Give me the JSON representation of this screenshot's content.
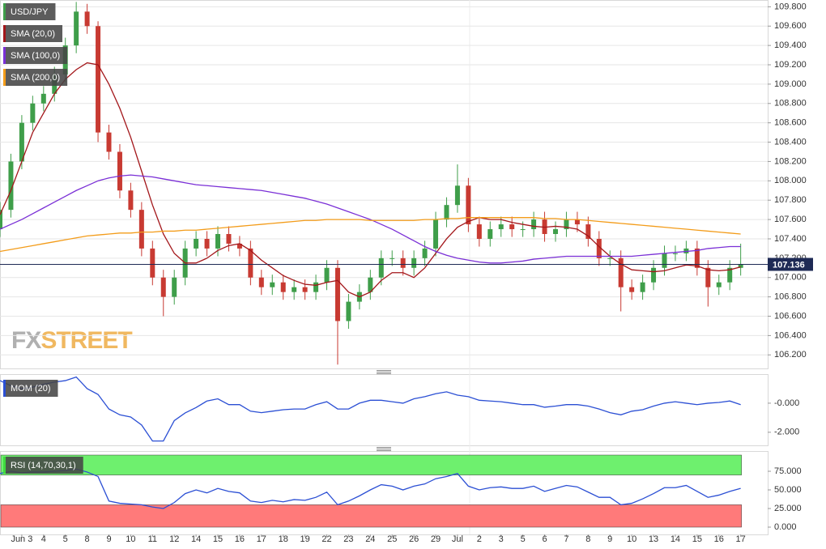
{
  "chart_data": [
    {
      "type": "candlestick",
      "symbol": "USD/JPY",
      "x": [
        -1,
        -0.5,
        0,
        0.5,
        1,
        1.5,
        2,
        2.5,
        3,
        3.5,
        4,
        4.5,
        5,
        5.5,
        6,
        6.5,
        7,
        7.5,
        8,
        8.5,
        9,
        9.5,
        10,
        10.5,
        11,
        11.5,
        12,
        12.5,
        13,
        13.5,
        14,
        14.5,
        15,
        15.5,
        16,
        16.5,
        17,
        17.5,
        18,
        18.5,
        19,
        19.5,
        20,
        20.5,
        21,
        21.5,
        22,
        22.5,
        23,
        23.5,
        24,
        24.5,
        25,
        25.5,
        26,
        26.5,
        27,
        27.5,
        28,
        28.5,
        29,
        29.5,
        30,
        30.5,
        31,
        31.5,
        32,
        32.5,
        33
      ],
      "open": [
        107.5,
        107.7,
        108.2,
        108.6,
        108.8,
        108.9,
        109.1,
        109.4,
        109.75,
        109.6,
        108.5,
        108.3,
        107.9,
        107.7,
        107.3,
        107.0,
        106.8,
        107.0,
        107.3,
        107.4,
        107.3,
        107.45,
        107.35,
        107.3,
        107.0,
        106.9,
        106.95,
        106.85,
        106.9,
        106.85,
        106.95,
        107.1,
        106.55,
        106.75,
        106.85,
        107.0,
        107.2,
        107.2,
        107.1,
        107.2,
        107.3,
        107.6,
        107.75,
        107.95,
        107.55,
        107.4,
        107.5,
        107.55,
        107.5,
        107.5,
        107.6,
        107.45,
        107.5,
        107.6,
        107.55,
        107.4,
        107.2,
        107.2,
        106.9,
        106.85,
        106.95,
        107.1,
        107.25,
        107.25,
        107.3,
        107.1,
        106.9,
        106.95,
        107.1
      ],
      "high": [
        107.78,
        108.28,
        108.68,
        108.88,
        108.98,
        109.18,
        109.48,
        109.85,
        109.83,
        109.65,
        108.58,
        108.38,
        107.98,
        107.78,
        107.38,
        107.08,
        107.08,
        107.38,
        107.48,
        107.48,
        107.53,
        107.53,
        107.43,
        107.38,
        107.08,
        107.03,
        107.03,
        106.98,
        106.98,
        107.03,
        107.18,
        107.18,
        106.83,
        106.93,
        107.08,
        107.28,
        107.28,
        107.28,
        107.28,
        107.38,
        107.68,
        107.83,
        108.17,
        108.03,
        107.63,
        107.58,
        107.63,
        107.63,
        107.58,
        107.68,
        107.68,
        107.58,
        107.68,
        107.68,
        107.63,
        107.48,
        107.28,
        107.28,
        106.98,
        107.03,
        107.18,
        107.33,
        107.33,
        107.38,
        107.38,
        107.18,
        107.03,
        107.18,
        107.35
      ],
      "low": [
        107.42,
        107.62,
        108.12,
        108.52,
        108.72,
        108.82,
        109.02,
        109.32,
        109.52,
        108.4,
        108.22,
        107.82,
        107.62,
        107.22,
        106.92,
        106.6,
        106.72,
        106.92,
        107.22,
        107.22,
        107.22,
        107.27,
        107.22,
        106.92,
        106.82,
        106.82,
        106.77,
        106.77,
        106.77,
        106.77,
        106.87,
        106.1,
        106.47,
        106.67,
        106.77,
        106.92,
        107.12,
        107.02,
        107.02,
        107.12,
        107.22,
        107.52,
        107.67,
        107.47,
        107.32,
        107.32,
        107.42,
        107.42,
        107.42,
        107.42,
        107.37,
        107.37,
        107.42,
        107.47,
        107.32,
        107.12,
        107.12,
        106.65,
        106.77,
        106.77,
        106.87,
        107.02,
        107.17,
        107.17,
        107.02,
        106.7,
        106.82,
        106.87,
        107.02
      ],
      "close": [
        107.7,
        108.2,
        108.6,
        108.8,
        108.9,
        109.1,
        109.4,
        109.75,
        109.6,
        108.5,
        108.3,
        107.9,
        107.7,
        107.3,
        107.0,
        106.8,
        107.0,
        107.3,
        107.4,
        107.3,
        107.45,
        107.35,
        107.3,
        107.0,
        106.9,
        106.95,
        106.85,
        106.9,
        106.85,
        106.95,
        107.1,
        106.55,
        106.75,
        106.85,
        107.0,
        107.2,
        107.2,
        107.1,
        107.2,
        107.3,
        107.6,
        107.75,
        107.95,
        107.55,
        107.4,
        107.5,
        107.55,
        107.5,
        107.5,
        107.6,
        107.45,
        107.5,
        107.6,
        107.55,
        107.4,
        107.2,
        107.2,
        106.9,
        106.85,
        106.95,
        107.1,
        107.25,
        107.25,
        107.3,
        107.1,
        106.9,
        106.95,
        107.1,
        107.14
      ],
      "up_color": "#3f9e4a",
      "down_color": "#c83a32",
      "symbol_color": "#3f9e4a",
      "series": [
        {
          "name": "SMA (20,0)",
          "color": "#a3161a",
          "values": [
            107.65,
            107.9,
            108.2,
            108.5,
            108.7,
            108.9,
            109.05,
            109.15,
            109.22,
            109.2,
            109.0,
            108.75,
            108.45,
            108.1,
            107.75,
            107.45,
            107.25,
            107.15,
            107.15,
            107.2,
            107.28,
            107.33,
            107.35,
            107.28,
            107.18,
            107.1,
            107.02,
            106.97,
            106.93,
            106.92,
            106.95,
            106.97,
            106.85,
            106.8,
            106.85,
            106.97,
            107.05,
            107.05,
            107.0,
            107.1,
            107.25,
            107.4,
            107.52,
            107.58,
            107.62,
            107.6,
            107.6,
            107.57,
            107.55,
            107.53,
            107.52,
            107.53,
            107.52,
            107.5,
            107.43,
            107.32,
            107.22,
            107.14,
            107.08,
            107.07,
            107.06,
            107.07,
            107.1,
            107.13,
            107.12,
            107.08,
            107.07,
            107.08,
            107.11
          ]
        },
        {
          "name": "SMA (100,0)",
          "color": "#7a2fd6",
          "values": [
            107.5,
            107.55,
            107.6,
            107.66,
            107.72,
            107.78,
            107.84,
            107.9,
            107.95,
            108.0,
            108.03,
            108.05,
            108.06,
            108.05,
            108.04,
            108.02,
            108.0,
            107.98,
            107.96,
            107.95,
            107.94,
            107.93,
            107.92,
            107.91,
            107.9,
            107.88,
            107.86,
            107.84,
            107.82,
            107.79,
            107.76,
            107.72,
            107.68,
            107.64,
            107.6,
            107.55,
            107.5,
            107.44,
            107.38,
            107.32,
            107.27,
            107.23,
            107.2,
            107.18,
            107.16,
            107.15,
            107.15,
            107.16,
            107.17,
            107.19,
            107.2,
            107.21,
            107.22,
            107.22,
            107.22,
            107.22,
            107.22,
            107.22,
            107.22,
            107.23,
            107.24,
            107.25,
            107.26,
            107.27,
            107.28,
            107.3,
            107.31,
            107.32,
            107.32
          ]
        },
        {
          "name": "SMA (200,0)",
          "color": "#f39c1a",
          "values": [
            107.27,
            107.29,
            107.31,
            107.33,
            107.35,
            107.37,
            107.39,
            107.41,
            107.43,
            107.44,
            107.45,
            107.46,
            107.46,
            107.47,
            107.47,
            107.48,
            107.48,
            107.49,
            107.49,
            107.5,
            107.51,
            107.52,
            107.53,
            107.54,
            107.55,
            107.56,
            107.57,
            107.58,
            107.59,
            107.59,
            107.6,
            107.6,
            107.6,
            107.6,
            107.59,
            107.59,
            107.59,
            107.59,
            107.59,
            107.6,
            107.6,
            107.61,
            107.61,
            107.62,
            107.62,
            107.62,
            107.62,
            107.62,
            107.62,
            107.62,
            107.61,
            107.61,
            107.6,
            107.6,
            107.59,
            107.58,
            107.57,
            107.56,
            107.55,
            107.54,
            107.53,
            107.52,
            107.51,
            107.5,
            107.49,
            107.48,
            107.47,
            107.46,
            107.45
          ]
        }
      ],
      "last_price": 107.136,
      "last_price_color": "#1e2a55",
      "xlim": [
        -1.0,
        34.24
      ],
      "ylim": [
        106.06,
        109.87
      ],
      "grid": true,
      "yticks": [
        {
          "value": 106.2,
          "label": "106.200"
        },
        {
          "value": 106.4,
          "label": "106.400"
        },
        {
          "value": 106.6,
          "label": "106.600"
        },
        {
          "value": 106.8,
          "label": "106.800"
        },
        {
          "value": 107.0,
          "label": "107.000"
        },
        {
          "value": 107.2,
          "label": "107.200"
        },
        {
          "value": 107.4,
          "label": "107.400"
        },
        {
          "value": 107.6,
          "label": "107.600"
        },
        {
          "value": 107.8,
          "label": "107.800"
        },
        {
          "value": 108.0,
          "label": "108.000"
        },
        {
          "value": 108.2,
          "label": "108.200"
        },
        {
          "value": 108.4,
          "label": "108.400"
        },
        {
          "value": 108.6,
          "label": "108.600"
        },
        {
          "value": 108.8,
          "label": "108.800"
        },
        {
          "value": 109.0,
          "label": "109.000"
        },
        {
          "value": 109.2,
          "label": "109.200"
        },
        {
          "value": 109.4,
          "label": "109.400"
        },
        {
          "value": 109.6,
          "label": "109.600"
        },
        {
          "value": 109.8,
          "label": "109.800"
        }
      ],
      "watermark": {
        "fx": "FX",
        "street": "STREET"
      }
    },
    {
      "type": "line",
      "x": [
        -1,
        -0.5,
        0,
        0.5,
        1,
        1.5,
        2,
        2.5,
        3,
        3.5,
        4,
        4.5,
        5,
        5.5,
        6,
        6.5,
        7,
        7.5,
        8,
        8.5,
        9,
        9.5,
        10,
        10.5,
        11,
        11.5,
        12,
        12.5,
        13,
        13.5,
        14,
        14.5,
        15,
        15.5,
        16,
        16.5,
        17,
        17.5,
        18,
        18.5,
        19,
        19.5,
        20,
        20.5,
        21,
        21.5,
        22,
        22.5,
        23,
        23.5,
        24,
        24.5,
        25,
        25.5,
        26,
        26.5,
        27,
        27.5,
        28,
        28.5,
        29,
        29.5,
        30,
        30.5,
        31,
        31.5,
        32,
        32.5,
        33
      ],
      "series": [
        {
          "name": "MOM (20)",
          "color": "#2b4fd4",
          "values": [
            1.55,
            1.2,
            1.0,
            1.1,
            1.3,
            1.45,
            1.55,
            1.8,
            1.0,
            0.6,
            -0.4,
            -0.8,
            -0.95,
            -1.5,
            -2.6,
            -2.6,
            -1.2,
            -0.67,
            -0.3,
            0.15,
            0.3,
            -0.1,
            -0.1,
            -0.55,
            -0.65,
            -0.55,
            -0.45,
            -0.4,
            -0.4,
            -0.1,
            0.1,
            -0.4,
            -0.4,
            0,
            0.2,
            0.2,
            0.1,
            0,
            0.3,
            0.45,
            0.65,
            0.78,
            0.55,
            0.45,
            0.2,
            0.15,
            0.1,
            0,
            -0.1,
            -0.1,
            -0.28,
            -0.2,
            -0.1,
            -0.1,
            -0.2,
            -0.4,
            -0.65,
            -0.8,
            -0.55,
            -0.45,
            -0.2,
            0,
            0.1,
            0,
            -0.1,
            0,
            0.05,
            0.15,
            -0.1
          ]
        }
      ],
      "xlim": [
        -1.0,
        34.24
      ],
      "ylim": [
        -2.9,
        2.0
      ],
      "yticks": [
        {
          "value": -2,
          "label": "-2.000"
        },
        {
          "value": 0,
          "label": "-0.000"
        }
      ]
    },
    {
      "type": "line",
      "x": [
        -1,
        -0.5,
        0,
        0.5,
        1,
        1.5,
        2,
        2.5,
        3,
        3.5,
        4,
        4.5,
        5,
        5.5,
        6,
        6.5,
        7,
        7.5,
        8,
        8.5,
        9,
        9.5,
        10,
        10.5,
        11,
        11.5,
        12,
        12.5,
        13,
        13.5,
        14,
        14.5,
        15,
        15.5,
        16,
        16.5,
        17,
        17.5,
        18,
        18.5,
        19,
        19.5,
        20,
        20.5,
        21,
        21.5,
        22,
        22.5,
        23,
        23.5,
        24,
        24.5,
        25,
        25.5,
        26,
        26.5,
        27,
        27.5,
        28,
        28.5,
        29,
        29.5,
        30,
        30.5,
        31,
        31.5,
        32,
        32.5,
        33
      ],
      "series": [
        {
          "name": "RSI (14,70,30,1)",
          "color": "#2b4fd4",
          "values": [
            72,
            75,
            73,
            74,
            74,
            75,
            76,
            78,
            74,
            68,
            35,
            32,
            31,
            30,
            27,
            25,
            33,
            45,
            50,
            46,
            52,
            48,
            46,
            35,
            33,
            36,
            34,
            37,
            36,
            40,
            47,
            30,
            35,
            42,
            50,
            57,
            55,
            50,
            55,
            58,
            65,
            68,
            72,
            55,
            50,
            53,
            54,
            52,
            52,
            55,
            48,
            52,
            56,
            54,
            47,
            40,
            40,
            30,
            32,
            38,
            45,
            53,
            53,
            56,
            48,
            40,
            43,
            48,
            52
          ]
        }
      ],
      "overbought": 70,
      "oversold": 30,
      "overbought_color": "#6ef06e",
      "oversold_color": "#ff7a7a",
      "label_color": "#3fd93f",
      "xlim": [
        -1.0,
        34.24
      ],
      "ylim": [
        -9.8,
        102.2
      ],
      "yticks": [
        {
          "value": 0,
          "label": "0.000"
        },
        {
          "value": 25,
          "label": "25.000"
        },
        {
          "value": 50,
          "label": "50.000"
        },
        {
          "value": 75,
          "label": "75.000"
        }
      ],
      "xticks": [
        {
          "value": 0,
          "label": "Jun 3"
        },
        {
          "value": 1,
          "label": "4"
        },
        {
          "value": 2,
          "label": "5"
        },
        {
          "value": 3,
          "label": "8"
        },
        {
          "value": 4,
          "label": "9"
        },
        {
          "value": 5,
          "label": "10"
        },
        {
          "value": 6,
          "label": "11"
        },
        {
          "value": 7,
          "label": "12"
        },
        {
          "value": 8,
          "label": "14"
        },
        {
          "value": 9,
          "label": "15"
        },
        {
          "value": 10,
          "label": "16"
        },
        {
          "value": 11,
          "label": "17"
        },
        {
          "value": 12,
          "label": "18"
        },
        {
          "value": 13,
          "label": "19"
        },
        {
          "value": 14,
          "label": "22"
        },
        {
          "value": 15,
          "label": "23"
        },
        {
          "value": 16,
          "label": "24"
        },
        {
          "value": 17,
          "label": "25"
        },
        {
          "value": 18,
          "label": "26"
        },
        {
          "value": 19,
          "label": "29"
        },
        {
          "value": 20,
          "label": "Jul"
        },
        {
          "value": 21,
          "label": "2"
        },
        {
          "value": 22,
          "label": "3"
        },
        {
          "value": 23,
          "label": "5"
        },
        {
          "value": 24,
          "label": "6"
        },
        {
          "value": 25,
          "label": "7"
        },
        {
          "value": 26,
          "label": "8"
        },
        {
          "value": 27,
          "label": "9"
        },
        {
          "value": 28,
          "label": "10"
        },
        {
          "value": 29,
          "label": "13"
        },
        {
          "value": 30,
          "label": "14"
        },
        {
          "value": 31,
          "label": "15"
        },
        {
          "value": 32,
          "label": "16"
        },
        {
          "value": 33,
          "label": "17"
        }
      ]
    }
  ]
}
